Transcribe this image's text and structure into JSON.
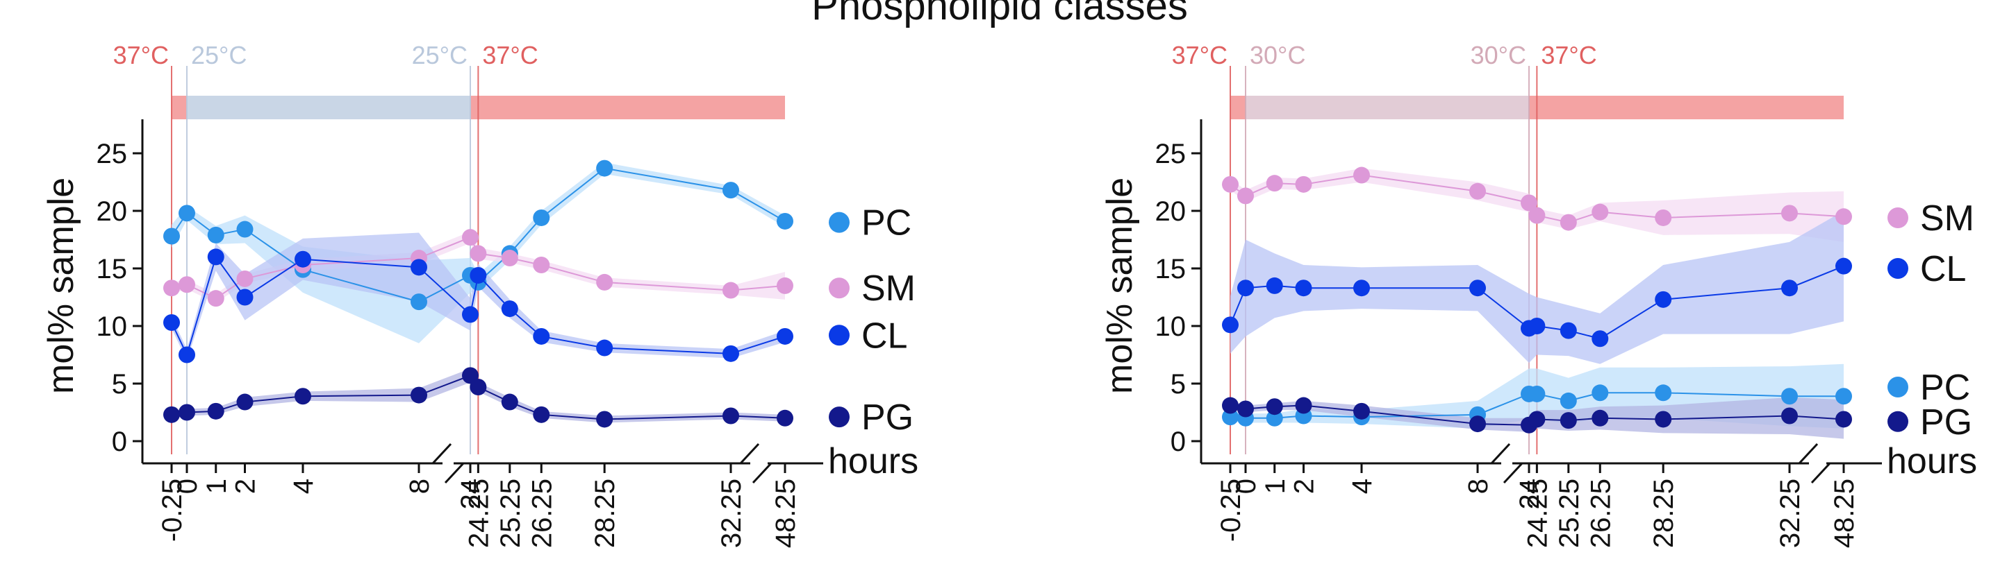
{
  "figure_title": "Phospholipid classes",
  "colors": {
    "hot": "#f4a3a3",
    "hot_line": "#e06060",
    "cold1": "#c9d6e6",
    "cold2": "#e2ccd6",
    "cold1_text": "#b9c8dc",
    "cold2_text": "#d3aab7",
    "PC": "#2b92e8",
    "PC_band": "#bfe0fb",
    "SM": "#dd99d8",
    "SM_band": "#f4dcf3",
    "CL": "#0a3ae6",
    "CL_band": "#b8c4f5",
    "PG": "#13198c",
    "PG_band": "#b3b6e3"
  },
  "chart_data": [
    {
      "type": "line",
      "panel": "left",
      "ylabel": "mol% sample",
      "xlabel": "hours",
      "ylim": [
        0,
        27
      ],
      "yticks": [
        0,
        5,
        10,
        15,
        20,
        25
      ],
      "xtick_labels": [
        "-0.25",
        "0",
        "1",
        "2",
        "4",
        "8",
        "24",
        "24.25",
        "25.25",
        "26.25",
        "28.25",
        "32.25",
        "48.25"
      ],
      "temperature_labels": [
        {
          "text": "37°C",
          "x": "-0.25",
          "color": "hot_line"
        },
        {
          "text": "25°C",
          "x": "0",
          "color": "cold1_text"
        },
        {
          "text": "25°C",
          "x": "24",
          "color": "cold1_text"
        },
        {
          "text": "37°C",
          "x": "24.25",
          "color": "hot_line"
        }
      ],
      "temperature_bar": [
        {
          "from": "-0.25",
          "to": "0",
          "color": "hot"
        },
        {
          "from": "0",
          "to": "24",
          "color": "cold1"
        },
        {
          "from": "24",
          "to": "48.25",
          "color": "hot"
        }
      ],
      "series": [
        {
          "name": "PC",
          "x": [
            "-0.25",
            "0",
            "1",
            "2",
            "4",
            "8",
            "24",
            "24.25",
            "25.25",
            "26.25",
            "28.25",
            "32.25",
            "48.25"
          ],
          "values": [
            17.8,
            19.8,
            17.9,
            18.4,
            14.9,
            12.1,
            14.4,
            13.8,
            16.3,
            19.4,
            23.7,
            21.8,
            19.1
          ],
          "band": [
            1.0,
            0.6,
            0.8,
            1.2,
            2.0,
            3.6,
            1.5,
            0.7,
            0.6,
            0.6,
            0.5,
            0.4,
            0.5
          ]
        },
        {
          "name": "SM",
          "x": [
            "-0.25",
            "0",
            "1",
            "2",
            "4",
            "8",
            "24",
            "24.25",
            "25.25",
            "26.25",
            "28.25",
            "32.25",
            "48.25"
          ],
          "values": [
            13.3,
            13.6,
            12.4,
            14.1,
            15.3,
            15.9,
            17.7,
            16.3,
            15.9,
            15.3,
            13.8,
            13.1,
            13.5
          ],
          "band": [
            0.5,
            0.4,
            0.4,
            0.4,
            0.5,
            0.5,
            0.5,
            0.5,
            0.4,
            0.4,
            0.4,
            0.4,
            1.2
          ]
        },
        {
          "name": "CL",
          "x": [
            "-0.25",
            "0",
            "1",
            "2",
            "4",
            "8",
            "24",
            "24.25",
            "25.25",
            "26.25",
            "28.25",
            "32.25",
            "48.25"
          ],
          "values": [
            10.3,
            7.5,
            16.0,
            12.5,
            15.8,
            15.1,
            11.0,
            14.4,
            11.5,
            9.1,
            8.1,
            7.6,
            9.1
          ],
          "band": [
            0.5,
            0.5,
            1.2,
            2.0,
            1.8,
            3.0,
            1.4,
            1.0,
            0.8,
            0.5,
            0.4,
            0.4,
            0.5
          ]
        },
        {
          "name": "PG",
          "x": [
            "-0.25",
            "0",
            "1",
            "2",
            "4",
            "8",
            "24",
            "24.25",
            "25.25",
            "26.25",
            "28.25",
            "32.25",
            "48.25"
          ],
          "values": [
            2.3,
            2.5,
            2.6,
            3.4,
            3.9,
            4.0,
            5.7,
            4.7,
            3.4,
            2.3,
            1.9,
            2.2,
            2.0
          ],
          "band": [
            0.3,
            0.3,
            0.3,
            0.4,
            0.4,
            0.6,
            0.6,
            0.4,
            0.4,
            0.3,
            0.3,
            0.3,
            0.3
          ]
        }
      ],
      "legend": [
        {
          "name": "PC",
          "y": 19.0
        },
        {
          "name": "SM",
          "y": 13.3
        },
        {
          "name": "CL",
          "y": 9.2
        },
        {
          "name": "PG",
          "y": 2.1
        }
      ]
    },
    {
      "type": "line",
      "panel": "right",
      "ylabel": "mol% sample",
      "xlabel": "hours",
      "ylim": [
        0,
        27
      ],
      "yticks": [
        0,
        5,
        10,
        15,
        20,
        25
      ],
      "xtick_labels": [
        "-0.25",
        "0",
        "1",
        "2",
        "4",
        "8",
        "24",
        "24.25",
        "25.25",
        "26.25",
        "28.25",
        "32.25",
        "48.25"
      ],
      "temperature_labels": [
        {
          "text": "37°C",
          "x": "-0.25",
          "color": "hot_line"
        },
        {
          "text": "30°C",
          "x": "0",
          "color": "cold2_text"
        },
        {
          "text": "30°C",
          "x": "24",
          "color": "cold2_text"
        },
        {
          "text": "37°C",
          "x": "24.25",
          "color": "hot_line"
        }
      ],
      "temperature_bar": [
        {
          "from": "-0.25",
          "to": "0",
          "color": "hot"
        },
        {
          "from": "0",
          "to": "24",
          "color": "cold2"
        },
        {
          "from": "24",
          "to": "48.25",
          "color": "hot"
        }
      ],
      "series": [
        {
          "name": "SM",
          "x": [
            "-0.25",
            "0",
            "1",
            "2",
            "4",
            "8",
            "24",
            "24.25",
            "25.25",
            "26.25",
            "28.25",
            "32.25",
            "48.25"
          ],
          "values": [
            22.3,
            21.3,
            22.4,
            22.3,
            23.1,
            21.7,
            20.7,
            19.6,
            19.0,
            19.9,
            19.4,
            19.8,
            19.5
          ],
          "band": [
            0.5,
            0.5,
            0.5,
            0.5,
            0.6,
            0.8,
            0.8,
            0.6,
            0.6,
            0.8,
            1.5,
            1.8,
            2.2
          ]
        },
        {
          "name": "CL",
          "x": [
            "-0.25",
            "0",
            "1",
            "2",
            "4",
            "8",
            "24",
            "24.25",
            "25.25",
            "26.25",
            "28.25",
            "32.25",
            "48.25"
          ],
          "values": [
            10.1,
            13.3,
            13.5,
            13.3,
            13.3,
            13.3,
            9.8,
            10.0,
            9.6,
            8.9,
            12.3,
            13.3,
            15.2
          ],
          "band": [
            2.5,
            4.2,
            2.8,
            2.0,
            1.8,
            2.0,
            3.0,
            2.5,
            2.2,
            2.2,
            3.0,
            4.0,
            4.8
          ]
        },
        {
          "name": "PC",
          "x": [
            "-0.25",
            "0",
            "1",
            "2",
            "4",
            "8",
            "24",
            "24.25",
            "25.25",
            "26.25",
            "28.25",
            "32.25",
            "48.25"
          ],
          "values": [
            2.1,
            2.0,
            2.0,
            2.2,
            2.1,
            2.3,
            4.1,
            4.1,
            3.5,
            4.2,
            4.2,
            3.9,
            3.9
          ],
          "band": [
            0.4,
            0.4,
            0.4,
            0.6,
            0.6,
            1.2,
            2.2,
            2.2,
            2.0,
            2.2,
            2.2,
            2.6,
            2.8
          ]
        },
        {
          "name": "PG",
          "x": [
            "-0.25",
            "0",
            "1",
            "2",
            "4",
            "8",
            "24",
            "24.25",
            "25.25",
            "26.25",
            "28.25",
            "32.25",
            "48.25"
          ],
          "values": [
            3.1,
            2.8,
            3.0,
            3.1,
            2.6,
            1.5,
            1.4,
            1.9,
            1.8,
            2.0,
            1.9,
            2.2,
            1.9
          ],
          "band": [
            0.4,
            0.3,
            0.3,
            0.4,
            0.5,
            0.5,
            0.6,
            0.8,
            0.9,
            1.0,
            1.2,
            1.6,
            1.7
          ]
        }
      ],
      "legend": [
        {
          "name": "SM",
          "y": 19.4
        },
        {
          "name": "CL",
          "y": 15.0
        },
        {
          "name": "PC",
          "y": 4.7
        },
        {
          "name": "PG",
          "y": 1.7
        }
      ]
    }
  ]
}
